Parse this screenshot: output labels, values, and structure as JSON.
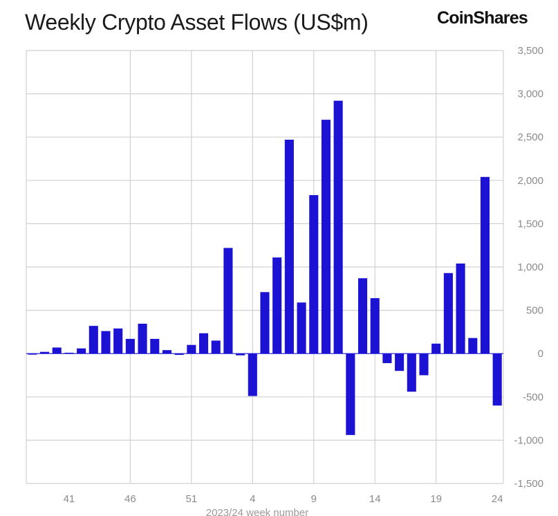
{
  "page": {
    "title": "Weekly Crypto Asset Flows (US$m)",
    "brand": "CoinShares"
  },
  "colors": {
    "bar": "#1b12d4",
    "grid": "#d0d0d0",
    "zero_line": "#1b12d4"
  },
  "chart_data": {
    "type": "bar",
    "title": "Weekly Crypto Asset Flows (US$m)",
    "xlabel": "2023/24 week number",
    "ylabel": "",
    "ylim": [
      -1500,
      3500
    ],
    "yticks": [
      3500,
      3000,
      2500,
      2000,
      1500,
      1000,
      500,
      0,
      -500,
      -1000,
      -1500
    ],
    "ytick_labels": [
      "3,500",
      "3,000",
      "2,500",
      "2,000",
      "1,500",
      "1,000",
      "500",
      "0",
      "-500",
      "-1,000",
      "-1,500"
    ],
    "xtick_labels": [
      "41",
      "46",
      "51",
      "4",
      "9",
      "14",
      "19",
      "24"
    ],
    "categories": [
      "38",
      "39",
      "40",
      "41",
      "42",
      "43",
      "44",
      "45",
      "46",
      "47",
      "48",
      "49",
      "50",
      "51",
      "52",
      "1",
      "2",
      "3",
      "4",
      "5",
      "6",
      "7",
      "8",
      "9",
      "10",
      "11",
      "12",
      "13",
      "14",
      "15",
      "16",
      "17",
      "18",
      "19",
      "20",
      "21",
      "22",
      "23",
      "24"
    ],
    "values": [
      -10,
      20,
      70,
      10,
      60,
      320,
      260,
      290,
      170,
      345,
      170,
      40,
      -15,
      100,
      235,
      150,
      1220,
      -20,
      -490,
      710,
      1110,
      2470,
      590,
      1830,
      2700,
      2920,
      -940,
      870,
      640,
      -110,
      -200,
      -440,
      -250,
      115,
      930,
      1040,
      180,
      2040,
      -600
    ],
    "grid": true,
    "legend": "none"
  }
}
